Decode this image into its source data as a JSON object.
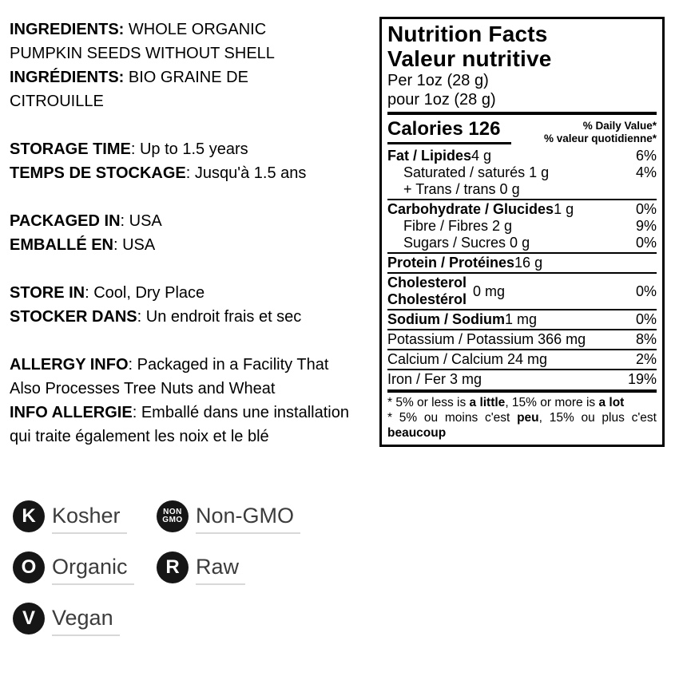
{
  "colors": {
    "text": "#000000",
    "badge_background": "#161616",
    "badge_label_text": "#3c3c3c",
    "badge_underline": "#d8d8d8"
  },
  "left": {
    "groups": [
      {
        "lines": [
          {
            "bold": "INGREDIENTS:",
            "text": " WHOLE ORGANIC"
          },
          {
            "bold": "",
            "text": "PUMPKIN SEEDS WITHOUT SHELL"
          },
          {
            "bold": "INGRÉDIENTS:",
            "text": " BIO GRAINE DE"
          },
          {
            "bold": "",
            "text": "CITROUILLE"
          }
        ]
      },
      {
        "lines": [
          {
            "bold": "STORAGE TIME",
            "text": ": Up to 1.5 years"
          },
          {
            "bold": "TEMPS DE STOCKAGE",
            "text": ": Jusqu'à 1.5 ans"
          }
        ]
      },
      {
        "lines": [
          {
            "bold": "PACKAGED IN",
            "text": ": USA"
          },
          {
            "bold": "EMBALLÉ EN",
            "text": ": USA"
          }
        ]
      },
      {
        "lines": [
          {
            "bold": "STORE IN",
            "text": ": Cool, Dry Place"
          },
          {
            "bold": "STOCKER DANS",
            "text": ": Un endroit frais et sec"
          }
        ]
      },
      {
        "lines": [
          {
            "bold": "ALLERGY INFO",
            "text": ": Packaged in a Facility That"
          },
          {
            "bold": "",
            "text": "Also Processes Tree Nuts and Wheat"
          },
          {
            "bold": "INFO ALLERGIE",
            "text": ": Emballé dans une installation"
          },
          {
            "bold": "",
            "text": "qui traite également les noix et le blé"
          }
        ]
      }
    ]
  },
  "nutrition": {
    "title_en": "Nutrition Facts",
    "title_fr": "Valeur nutritive",
    "serving_en": "Per 1oz (28 g)",
    "serving_fr": "pour 1oz (28 g)",
    "calories_label": "Calories",
    "calories_value": "126",
    "dv_header_line1": "% Daily Value*",
    "dv_header_line2": "% valeur quotidienne*",
    "rows": [
      {
        "bold": "Fat / Lipides",
        "rest": " 4 g",
        "dv": "6%"
      },
      {
        "text": "Saturated / saturés 1 g",
        "dv": "4%"
      },
      {
        "text": "+ Trans / trans 0 g",
        "dv": ""
      },
      {
        "bold": "Carbohydrate / Glucides",
        "rest": " 1 g",
        "dv": "0%"
      },
      {
        "text": "Fibre / Fibres 2 g",
        "dv": "9%"
      },
      {
        "text": "Sugars / Sucres 0 g",
        "dv": "0%"
      },
      {
        "bold": "Protein / Protéines",
        "rest": " 16 g",
        "dv": ""
      },
      {
        "bold_line1": "Cholesterol",
        "bold_line2": "Cholestérol",
        "amount": "0 mg",
        "dv": "0%"
      },
      {
        "bold": "Sodium / Sodium",
        "rest": " 1 mg",
        "dv": "0%"
      },
      {
        "text": "Potassium / Potassium 366 mg",
        "dv": "8%"
      },
      {
        "text": "Calcium / Calcium 24 mg",
        "dv": "2%"
      },
      {
        "text": "Iron / Fer 3 mg",
        "dv": "19%"
      }
    ],
    "footnote_en": {
      "part1": "* 5% or less is ",
      "bold1": "a little",
      "part2": ", 15% or more is ",
      "bold2": "a lot"
    },
    "footnote_fr": {
      "part1": "* 5% ou moins c'est ",
      "bold1": "peu",
      "part2": ", 15% ou plus c'est ",
      "bold2": "beaucoup"
    }
  },
  "badges": [
    {
      "glyph": "K",
      "label": "Kosher"
    },
    {
      "glyph_top": "NON",
      "glyph_bottom": "GMO",
      "label": "Non-GMO"
    },
    {
      "glyph": "O",
      "label": "Organic"
    },
    {
      "glyph": "R",
      "label": "Raw"
    },
    {
      "glyph": "V",
      "label": "Vegan"
    }
  ]
}
